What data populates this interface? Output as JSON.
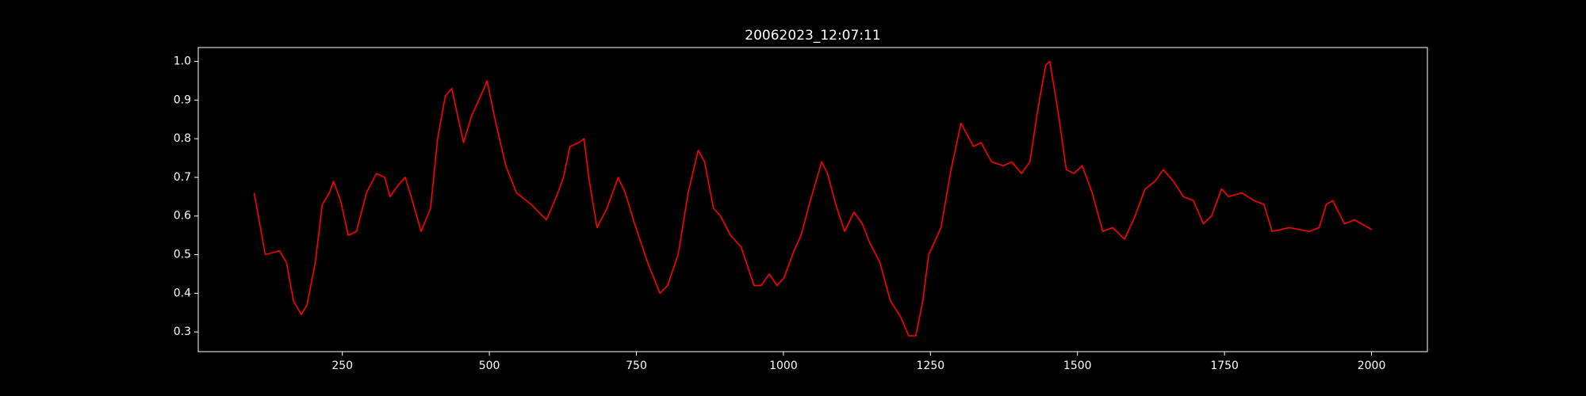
{
  "chart_data": {
    "type": "line",
    "title": "20062023_12:07:11",
    "x": [
      100,
      119,
      143,
      155,
      167,
      180,
      190,
      204,
      216,
      228,
      235,
      247,
      260,
      274,
      291,
      308,
      322,
      331,
      345,
      357,
      367,
      384,
      400,
      412,
      425,
      436,
      446,
      456,
      470,
      491,
      496,
      511,
      528,
      546,
      571,
      597,
      614,
      626,
      637,
      652,
      661,
      669,
      683,
      700,
      719,
      731,
      747,
      769,
      790,
      803,
      821,
      838,
      855,
      866,
      881,
      893,
      910,
      928,
      950,
      962,
      976,
      989,
      1001,
      1018,
      1030,
      1044,
      1065,
      1075,
      1089,
      1104,
      1120,
      1134,
      1147,
      1164,
      1182,
      1199,
      1213,
      1225,
      1237,
      1247,
      1268,
      1285,
      1302,
      1323,
      1336,
      1354,
      1374,
      1388,
      1405,
      1419,
      1433,
      1446,
      1453,
      1467,
      1481,
      1494,
      1508,
      1525,
      1543,
      1560,
      1580,
      1598,
      1615,
      1632,
      1646,
      1663,
      1680,
      1697,
      1714,
      1728,
      1745,
      1757,
      1779,
      1800,
      1817,
      1831,
      1860,
      1894,
      1911,
      1923,
      1934,
      1954,
      1971,
      2000
    ],
    "series": [
      {
        "color": "#ff0000",
        "values": [
          0.66,
          0.5,
          0.51,
          0.48,
          0.38,
          0.345,
          0.37,
          0.48,
          0.63,
          0.66,
          0.69,
          0.64,
          0.55,
          0.56,
          0.66,
          0.71,
          0.7,
          0.65,
          0.68,
          0.7,
          0.65,
          0.56,
          0.62,
          0.8,
          0.91,
          0.93,
          0.86,
          0.79,
          0.86,
          0.93,
          0.95,
          0.84,
          0.73,
          0.66,
          0.63,
          0.59,
          0.65,
          0.7,
          0.78,
          0.79,
          0.8,
          0.7,
          0.57,
          0.62,
          0.7,
          0.66,
          0.58,
          0.48,
          0.4,
          0.42,
          0.5,
          0.66,
          0.77,
          0.74,
          0.62,
          0.6,
          0.55,
          0.52,
          0.42,
          0.42,
          0.45,
          0.42,
          0.44,
          0.51,
          0.55,
          0.63,
          0.74,
          0.71,
          0.63,
          0.56,
          0.61,
          0.58,
          0.53,
          0.48,
          0.38,
          0.34,
          0.29,
          0.29,
          0.38,
          0.5,
          0.57,
          0.72,
          0.84,
          0.78,
          0.79,
          0.74,
          0.73,
          0.74,
          0.71,
          0.74,
          0.88,
          0.99,
          1.0,
          0.87,
          0.72,
          0.71,
          0.73,
          0.66,
          0.56,
          0.57,
          0.54,
          0.6,
          0.67,
          0.69,
          0.72,
          0.69,
          0.65,
          0.64,
          0.58,
          0.6,
          0.67,
          0.65,
          0.66,
          0.64,
          0.63,
          0.56,
          0.57,
          0.56,
          0.57,
          0.63,
          0.64,
          0.58,
          0.59,
          0.565
        ]
      }
    ],
    "xlim": [
      5,
      2095
    ],
    "ylim": [
      0.249,
      1.036
    ],
    "xticks": [
      250,
      500,
      750,
      1000,
      1250,
      1500,
      1750,
      2000
    ],
    "yticks": [
      0.3,
      0.4,
      0.5,
      0.6,
      0.7,
      0.8,
      0.9,
      {
        "value": 1,
        "label": "1.0"
      }
    ]
  }
}
